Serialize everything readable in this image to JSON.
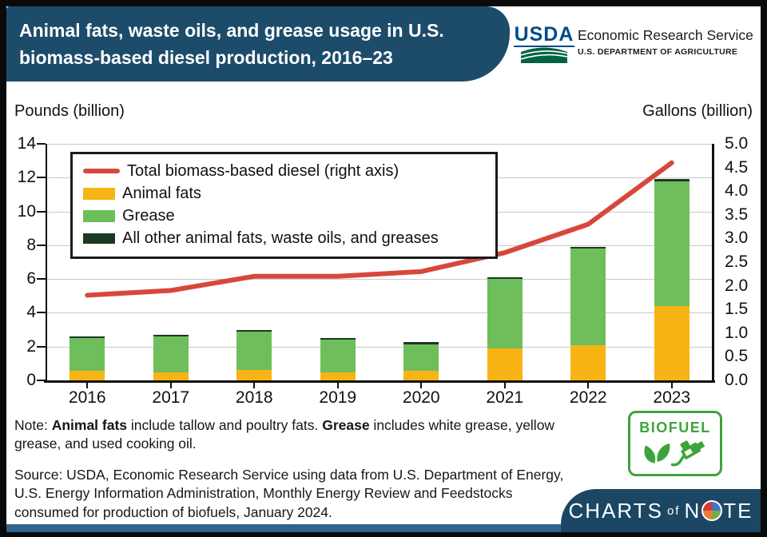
{
  "header": {
    "title_line1": "Animal fats, waste oils, and grease usage in U.S.",
    "title_line2": "biomass-based diesel production, 2016–23"
  },
  "logo": {
    "usda": "USDA",
    "org": "Economic Research Service",
    "dept": "U.S. DEPARTMENT OF AGRICULTURE"
  },
  "axis_titles": {
    "left": "Pounds (billion)",
    "right": "Gallons (billion)"
  },
  "chart_data": {
    "type": "bar+line",
    "categories": [
      "2016",
      "2017",
      "2018",
      "2019",
      "2020",
      "2021",
      "2022",
      "2023"
    ],
    "series": [
      {
        "name": "Animal fats",
        "type": "bar",
        "axis": "left",
        "color": "#F7B414",
        "values": [
          0.55,
          0.45,
          0.6,
          0.45,
          0.55,
          1.9,
          2.1,
          4.4
        ]
      },
      {
        "name": "Grease",
        "type": "bar",
        "axis": "left",
        "color": "#6FBE5C",
        "values": [
          1.95,
          2.15,
          2.3,
          1.95,
          1.6,
          4.1,
          5.7,
          7.4
        ]
      },
      {
        "name": "All other animal fats, waste oils, and greases",
        "type": "bar",
        "axis": "left",
        "color": "#1B3A22",
        "values": [
          0.1,
          0.1,
          0.1,
          0.1,
          0.1,
          0.1,
          0.1,
          0.1
        ]
      },
      {
        "name": "Total biomass-based diesel (right axis)",
        "type": "line",
        "axis": "right",
        "color": "#D8473B",
        "values": [
          1.8,
          1.9,
          2.2,
          2.2,
          2.3,
          2.7,
          3.3,
          4.6
        ]
      }
    ],
    "left_axis": {
      "label": "Pounds (billion)",
      "min": 0,
      "max": 14,
      "step": 2
    },
    "right_axis": {
      "label": "Gallons (billion)",
      "min": 0,
      "max": 5,
      "step": 0.5
    },
    "grid": true,
    "legend_position": "top-left"
  },
  "note": {
    "prefix": "Note: ",
    "bold1": "Animal fats",
    "text1": " include tallow and poultry fats. ",
    "bold2": "Grease",
    "text2": " includes white grease, yellow grease, and used cooking oil."
  },
  "source": {
    "text": "Source: USDA, Economic Research Service using data from U.S. Department of Energy, U.S. Energy Information Administration, Monthly Energy Review and Feedstocks consumed for production of biofuels, January 2024."
  },
  "badges": {
    "biofuel": "BIOFUEL",
    "charts_parts": {
      "charts": "CHARTS",
      "of": "of",
      "n": "N",
      "te": "TE"
    }
  },
  "colors": {
    "header_blue": "#1D4C6B",
    "panel_blue": "#1B4765",
    "strip_blue": "#2E6591",
    "biofuel_green": "#3EA33C",
    "usda_navy": "#004B87",
    "usda_swoosh_green": "#006341",
    "gridline_gray": "#C9C9C9"
  }
}
